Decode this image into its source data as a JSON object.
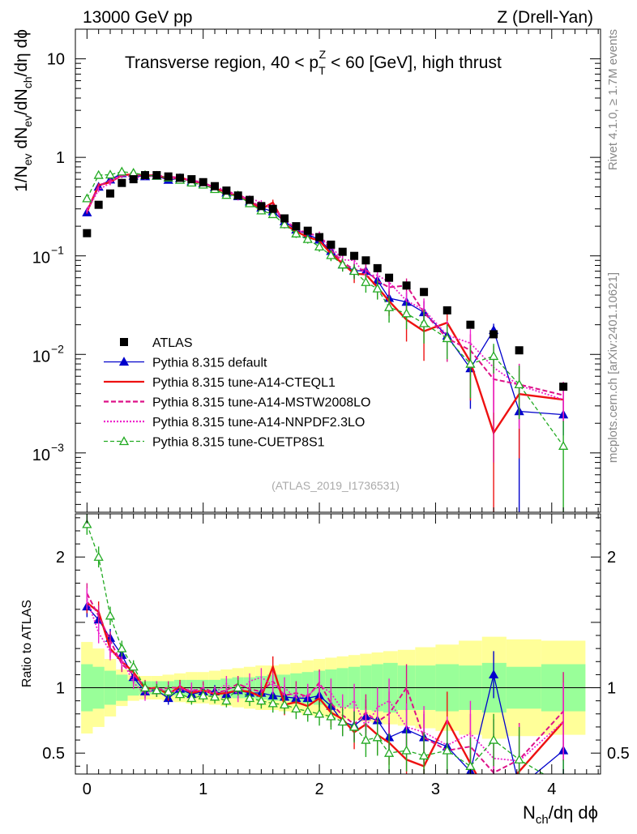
{
  "header": {
    "left": "13000 GeV pp",
    "right": "Z (Drell-Yan)"
  },
  "side": {
    "rivet": "Rivet 4.1.0, ≥ 1.7M events",
    "mcplots": "mcplots.cern.ch [arXiv:2401.10621]"
  },
  "chart_data": {
    "type": "line",
    "title": "Transverse region, 40 < p_T^Z < 60 [GeV], high thrust",
    "title_parts": [
      "Transverse region, 40 < p",
      "T",
      "Z",
      " < 60 [GeV], high thrust"
    ],
    "analysis_id": "(ATLAS_2019_I1736531)",
    "xlabel": "N_ch/dη dϕ",
    "xlabel_parts": [
      "N",
      "ch",
      "/dη dϕ"
    ],
    "ylabel": "1/N_ev dN_ev/dN_ch/dη dϕ",
    "ylabel_parts": [
      "1/N",
      "ev",
      " dN",
      "ev",
      "/dN",
      "ch",
      "/dη dϕ"
    ],
    "ratio_ylabel": "Ratio to ATLAS",
    "xlim": [
      -0.1,
      4.42
    ],
    "ylim_log": [
      0.00025,
      20
    ],
    "ratio_ylim": [
      0.34,
      2.33
    ],
    "xticks": [
      "0",
      "1",
      "2",
      "3",
      "4"
    ],
    "yticks_main": [
      {
        "v": 10,
        "label": "10"
      },
      {
        "v": 1,
        "label": "1"
      },
      {
        "v": 0.1,
        "base": "10",
        "exp": "−1"
      },
      {
        "v": 0.01,
        "base": "10",
        "exp": "−2"
      },
      {
        "v": 0.001,
        "base": "10",
        "exp": "−3"
      }
    ],
    "yticks_ratio": [
      {
        "v": 0.5,
        "label": "0.5"
      },
      {
        "v": 1,
        "label": "1"
      },
      {
        "v": 2,
        "label": "2"
      }
    ],
    "x": [
      0,
      0.1,
      0.2,
      0.3,
      0.4,
      0.5,
      0.6,
      0.7,
      0.8,
      0.9,
      1.0,
      1.1,
      1.2,
      1.3,
      1.4,
      1.5,
      1.6,
      1.7,
      1.8,
      1.9,
      2.0,
      2.1,
      2.2,
      2.3,
      2.4,
      2.5,
      2.6,
      2.75,
      2.9,
      3.1,
      3.3,
      3.5,
      3.72,
      4.1
    ],
    "data_y": [
      0.17,
      0.33,
      0.43,
      0.55,
      0.6,
      0.66,
      0.66,
      0.64,
      0.62,
      0.6,
      0.56,
      0.51,
      0.46,
      0.41,
      0.37,
      0.32,
      0.3,
      0.24,
      0.2,
      0.18,
      0.155,
      0.13,
      0.11,
      0.1,
      0.09,
      0.075,
      0.06,
      0.05,
      0.043,
      0.028,
      0.02,
      0.016,
      0.011,
      0.0047
    ],
    "band_inner": [
      0.18,
      0.16,
      0.13,
      0.1,
      0.06,
      0.05,
      0.05,
      0.05,
      0.06,
      0.06,
      0.06,
      0.06,
      0.07,
      0.08,
      0.08,
      0.09,
      0.1,
      0.1,
      0.11,
      0.12,
      0.13,
      0.14,
      0.15,
      0.16,
      0.17,
      0.18,
      0.19,
      0.17,
      0.17,
      0.18,
      0.17,
      0.19,
      0.16,
      0.18
    ],
    "band_outer": [
      0.35,
      0.3,
      0.22,
      0.14,
      0.1,
      0.09,
      0.09,
      0.1,
      0.11,
      0.12,
      0.12,
      0.13,
      0.14,
      0.15,
      0.16,
      0.17,
      0.17,
      0.18,
      0.19,
      0.21,
      0.22,
      0.23,
      0.24,
      0.25,
      0.26,
      0.27,
      0.28,
      0.29,
      0.31,
      0.33,
      0.36,
      0.39,
      0.37,
      0.36
    ],
    "series": [
      {
        "name": "Pythia 8.315 default",
        "color": "#0000cc",
        "dash": "",
        "marker": "triangle-filled",
        "width": 1.3,
        "ratio": [
          1.62,
          1.52,
          1.38,
          1.25,
          1.08,
          0.97,
          0.98,
          0.92,
          0.99,
          0.95,
          0.97,
          0.97,
          0.95,
          0.98,
          0.96,
          0.96,
          0.94,
          0.93,
          0.92,
          0.92,
          0.94,
          0.86,
          0.74,
          0.71,
          0.78,
          0.75,
          0.62,
          0.68,
          0.62,
          0.55,
          0.36,
          1.1,
          0.24,
          0.52
        ],
        "err": [
          0.08,
          0.08,
          0.07,
          0.06,
          0.05,
          0.05,
          0.05,
          0.05,
          0.05,
          0.05,
          0.05,
          0.05,
          0.05,
          0.06,
          0.06,
          0.06,
          0.07,
          0.07,
          0.08,
          0.08,
          0.09,
          0.1,
          0.11,
          0.12,
          0.13,
          0.14,
          0.15,
          0.16,
          0.18,
          0.2,
          0.22,
          0.18,
          0.25,
          0.2
        ]
      },
      {
        "name": "Pythia 8.315 tune-A14-CTEQL1",
        "color": "#ee1111",
        "dash": "",
        "marker": "none",
        "width": 2.4,
        "ratio": [
          1.65,
          1.58,
          1.3,
          1.2,
          1.12,
          0.99,
          1.0,
          0.95,
          1.01,
          0.96,
          0.98,
          0.95,
          0.96,
          0.98,
          0.97,
          0.93,
          1.16,
          0.87,
          0.89,
          0.86,
          0.92,
          0.81,
          0.76,
          0.66,
          0.72,
          0.64,
          0.58,
          0.45,
          0.4,
          0.75,
          0.42,
          0.1,
          0.36,
          0.74
        ],
        "err": [
          0.08,
          0.08,
          0.07,
          0.06,
          0.05,
          0.05,
          0.05,
          0.05,
          0.05,
          0.05,
          0.05,
          0.05,
          0.06,
          0.06,
          0.06,
          0.07,
          0.08,
          0.08,
          0.09,
          0.09,
          0.1,
          0.11,
          0.12,
          0.13,
          0.14,
          0.15,
          0.17,
          0.18,
          0.2,
          0.22,
          0.25,
          0.3,
          0.28,
          0.3
        ]
      },
      {
        "name": "Pythia 8.315 tune-A14-MSTW2008LO",
        "color": "#dd1188",
        "dash": "6 3",
        "marker": "none",
        "width": 2.0,
        "ratio": [
          1.72,
          1.55,
          1.36,
          1.18,
          1.1,
          1.01,
          0.98,
          1.0,
          1.0,
          0.97,
          1.0,
          0.96,
          0.98,
          1.03,
          0.99,
          0.97,
          1.05,
          0.94,
          0.96,
          0.93,
          1.04,
          0.88,
          0.79,
          0.72,
          0.81,
          0.74,
          0.8,
          1.0,
          0.62,
          0.52,
          0.55,
          0.35,
          0.45,
          0.82
        ],
        "err": [
          0.08,
          0.08,
          0.07,
          0.06,
          0.05,
          0.05,
          0.05,
          0.05,
          0.05,
          0.05,
          0.05,
          0.05,
          0.06,
          0.06,
          0.06,
          0.07,
          0.08,
          0.08,
          0.09,
          0.09,
          0.1,
          0.11,
          0.12,
          0.13,
          0.14,
          0.15,
          0.17,
          0.18,
          0.2,
          0.22,
          0.25,
          0.3,
          0.28,
          0.3
        ]
      },
      {
        "name": "Pythia 8.315 tune-A14-NNPDF2.3LO",
        "color": "#ee22cc",
        "dash": "2 2",
        "marker": "none",
        "width": 1.8,
        "ratio": [
          1.68,
          1.42,
          1.28,
          1.22,
          1.04,
          0.95,
          1.0,
          0.97,
          0.98,
          0.99,
          0.97,
          0.96,
          1.03,
          0.95,
          1.05,
          1.08,
          1.02,
          1.0,
          0.92,
          0.94,
          1.02,
          0.96,
          0.83,
          0.9,
          0.7,
          0.85,
          0.9,
          0.7,
          0.66,
          0.56,
          0.65,
          0.46,
          0.44,
          0.74
        ],
        "err": [
          0.08,
          0.08,
          0.07,
          0.06,
          0.05,
          0.05,
          0.05,
          0.05,
          0.05,
          0.05,
          0.05,
          0.05,
          0.06,
          0.06,
          0.06,
          0.07,
          0.08,
          0.08,
          0.09,
          0.09,
          0.1,
          0.11,
          0.12,
          0.13,
          0.14,
          0.15,
          0.17,
          0.18,
          0.2,
          0.22,
          0.25,
          0.3,
          0.28,
          0.3
        ]
      },
      {
        "name": "Pythia 8.315 tune-CUETP8S1",
        "color": "#22aa22",
        "dash": "5 3",
        "marker": "triangle-open",
        "width": 1.3,
        "ratio": [
          2.25,
          2.0,
          1.55,
          1.3,
          1.16,
          1.0,
          0.98,
          0.97,
          0.95,
          0.92,
          0.94,
          0.93,
          0.9,
          1.0,
          0.92,
          0.9,
          0.88,
          0.87,
          0.84,
          0.82,
          0.8,
          0.78,
          0.74,
          0.7,
          0.6,
          0.62,
          0.5,
          0.52,
          0.48,
          0.52,
          0.4,
          0.6,
          0.45,
          0.25
        ],
        "err": [
          0.08,
          0.08,
          0.07,
          0.06,
          0.05,
          0.05,
          0.05,
          0.05,
          0.05,
          0.05,
          0.05,
          0.05,
          0.05,
          0.06,
          0.06,
          0.06,
          0.07,
          0.07,
          0.08,
          0.08,
          0.09,
          0.1,
          0.11,
          0.12,
          0.13,
          0.14,
          0.15,
          0.16,
          0.18,
          0.2,
          0.22,
          0.2,
          0.25,
          0.2
        ]
      }
    ],
    "legend": [
      {
        "name": "ATLAS",
        "color": "#000000",
        "dash": "",
        "marker": "square-filled",
        "line": false
      },
      {
        "name": "Pythia 8.315 default",
        "color": "#0000cc",
        "dash": "",
        "marker": "triangle-filled",
        "line": true
      },
      {
        "name": "Pythia 8.315 tune-A14-CTEQL1",
        "color": "#ee1111",
        "dash": "",
        "marker": "none",
        "line": true
      },
      {
        "name": "Pythia 8.315 tune-A14-MSTW2008LO",
        "color": "#dd1188",
        "dash": "6 3",
        "marker": "none",
        "line": true
      },
      {
        "name": "Pythia 8.315 tune-A14-NNPDF2.3LO",
        "color": "#ee22cc",
        "dash": "2 2",
        "marker": "none",
        "line": true
      },
      {
        "name": "Pythia 8.315 tune-CUETP8S1",
        "color": "#22aa22",
        "dash": "5 3",
        "marker": "triangle-open",
        "line": true
      }
    ],
    "colors": {
      "band_inner": "#99ff99",
      "band_outer": "#ffff99",
      "axis": "#000000"
    }
  }
}
